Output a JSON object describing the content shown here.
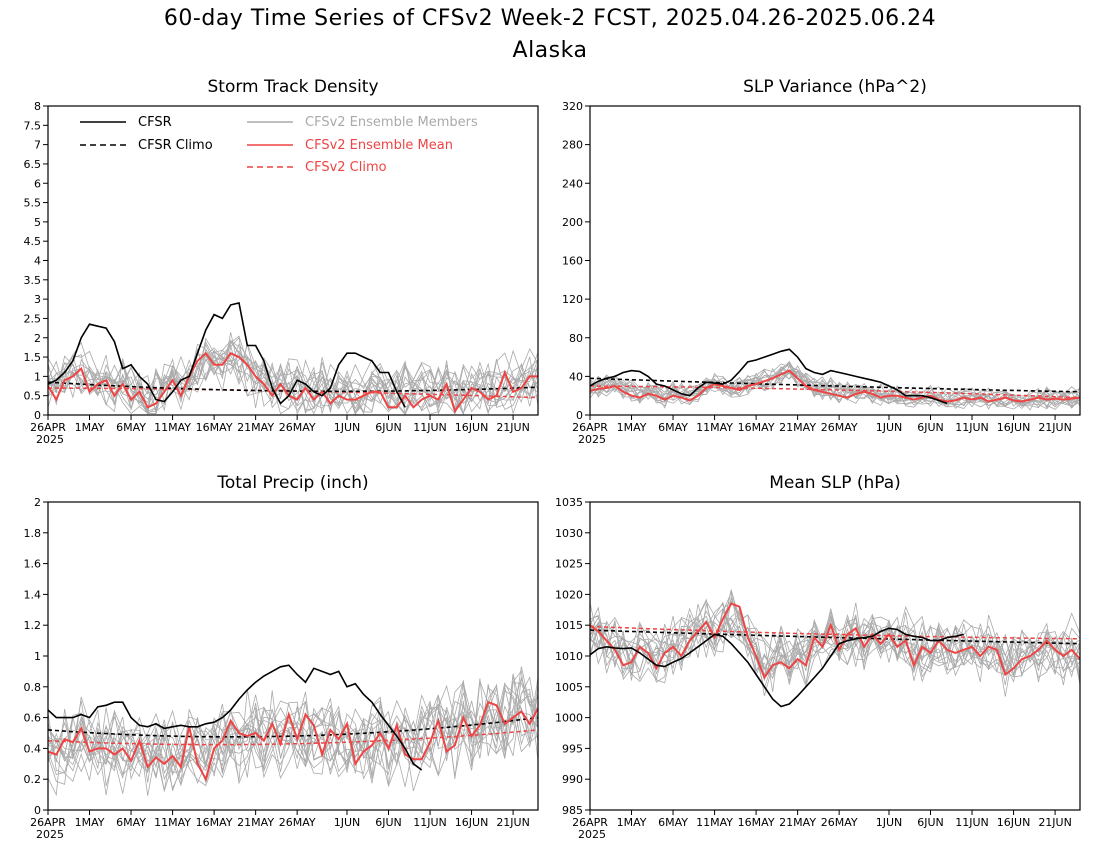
{
  "title": "60-day Time Series of CFSv2 Week-2 FCST, 2025.04.26-2025.06.24",
  "subtitle": "Alaska",
  "x_tick_labels": [
    "26APR",
    "1MAY",
    "6MAY",
    "11MAY",
    "16MAY",
    "21MAY",
    "26MAY",
    "1JUN",
    "6JUN",
    "11JUN",
    "16JUN",
    "21JUN"
  ],
  "x_year_label": "2025",
  "legend": {
    "cfsr": "CFSR",
    "cfsr_climo": "CFSR Climo",
    "members": "CFSv2 Ensemble Members",
    "ens_mean": "CFSv2 Ensemble Mean",
    "cfsv2_climo": "CFSv2 Climo"
  },
  "colors": {
    "cfsr": "#000000",
    "members": "#aaaaaa",
    "ens_mean": "#ee4444",
    "cfsv2_climo": "#ee4444"
  },
  "chart_data": [
    {
      "type": "line",
      "title": "Storm Track Density",
      "xlabel": "",
      "ylabel": "",
      "xlim": [
        0,
        59
      ],
      "ylim": [
        0,
        8
      ],
      "yticks": [
        0,
        0.5,
        1,
        1.5,
        2,
        2.5,
        3,
        3.5,
        4,
        4.5,
        5,
        5.5,
        6,
        6.5,
        7,
        7.5,
        8
      ],
      "ytick_labels": [
        "0",
        "0.5",
        "1",
        "1.5",
        "2",
        "2.5",
        "3",
        "3.5",
        "4",
        "4.5",
        "5",
        "5.5",
        "6",
        "6.5",
        "7",
        "7.5",
        "8"
      ],
      "cfsr": [
        0.8,
        0.9,
        1.1,
        1.4,
        2.0,
        2.35,
        2.3,
        2.25,
        1.9,
        1.2,
        1.3,
        1.0,
        0.8,
        0.4,
        0.35,
        0.6,
        0.9,
        1.0,
        1.6,
        2.2,
        2.6,
        2.5,
        2.85,
        2.9,
        1.8,
        1.8,
        1.4,
        0.7,
        0.3,
        0.5,
        0.9,
        0.8,
        0.6,
        0.5,
        0.7,
        1.3,
        1.6,
        1.6,
        1.5,
        1.4,
        1.1,
        1.1,
        0.6,
        0.2,
        null,
        null,
        null,
        null,
        null,
        null,
        null,
        null,
        null,
        null,
        null,
        null,
        null,
        null,
        null,
        null
      ],
      "cfsr_climo_start": 0.85,
      "cfsr_climo_mid": 0.62,
      "cfsr_climo_end": 0.72,
      "ens_mean": [
        0.75,
        0.4,
        0.9,
        1.0,
        1.2,
        0.6,
        0.8,
        0.9,
        0.5,
        0.8,
        0.4,
        0.6,
        0.2,
        0.3,
        0.6,
        0.9,
        0.5,
        1.0,
        1.4,
        1.6,
        1.3,
        1.3,
        1.6,
        1.5,
        1.3,
        1.0,
        0.8,
        0.5,
        0.8,
        0.5,
        0.4,
        0.7,
        0.4,
        0.6,
        0.3,
        0.5,
        0.4,
        0.4,
        0.5,
        0.6,
        0.6,
        0.2,
        0.2,
        0.5,
        0.2,
        0.4,
        0.5,
        0.4,
        0.8,
        0.1,
        0.4,
        0.7,
        0.6,
        0.4,
        0.5,
        1.1,
        0.6,
        0.7,
        1.0,
        1.0
      ],
      "cfsv2_climo_start": 0.7,
      "cfsv2_climo_mid": 0.62,
      "cfsv2_climo_end": 0.45,
      "members_center": [
        0.8,
        0.7,
        0.9,
        1.0,
        1.1,
        0.9,
        0.8,
        0.9,
        0.7,
        0.8,
        0.6,
        0.6,
        0.4,
        0.5,
        0.7,
        0.9,
        0.8,
        1.0,
        1.3,
        1.5,
        1.4,
        1.3,
        1.5,
        1.4,
        1.2,
        1.0,
        0.9,
        0.7,
        0.8,
        0.7,
        0.6,
        0.7,
        0.6,
        0.7,
        0.6,
        0.6,
        0.6,
        0.6,
        0.6,
        0.7,
        0.6,
        0.5,
        0.5,
        0.6,
        0.6,
        0.7,
        0.7,
        0.6,
        0.8,
        0.6,
        0.6,
        0.8,
        0.7,
        0.7,
        0.7,
        0.9,
        0.8,
        0.8,
        0.9,
        0.9
      ],
      "members_spread": 0.9,
      "members_count": 16
    },
    {
      "type": "line",
      "title": "SLP Variance (hPa^2)",
      "xlabel": "",
      "ylabel": "",
      "xlim": [
        0,
        59
      ],
      "ylim": [
        0,
        320
      ],
      "yticks": [
        0,
        40,
        80,
        120,
        160,
        200,
        240,
        280,
        320
      ],
      "ytick_labels": [
        "0",
        "40",
        "80",
        "120",
        "160",
        "200",
        "240",
        "280",
        "320"
      ],
      "cfsr": [
        30,
        35,
        38,
        40,
        44,
        46,
        45,
        40,
        32,
        30,
        26,
        22,
        20,
        28,
        34,
        33,
        32,
        36,
        45,
        55,
        57,
        60,
        63,
        66,
        68,
        60,
        48,
        44,
        42,
        46,
        44,
        42,
        40,
        38,
        36,
        34,
        30,
        26,
        20,
        20,
        20,
        18,
        15,
        12,
        null,
        null,
        null,
        null,
        null,
        null,
        null,
        null,
        null,
        null,
        null,
        null,
        null,
        null,
        null,
        null
      ],
      "cfsr_climo_start": 38,
      "cfsr_climo_mid": 30,
      "cfsr_climo_end": 24,
      "ens_mean": [
        25,
        27,
        28,
        30,
        24,
        20,
        18,
        22,
        20,
        16,
        20,
        18,
        15,
        20,
        28,
        32,
        30,
        28,
        26,
        30,
        32,
        35,
        38,
        42,
        46,
        38,
        30,
        26,
        24,
        22,
        20,
        18,
        22,
        24,
        22,
        18,
        20,
        20,
        18,
        16,
        18,
        20,
        16,
        14,
        15,
        18,
        16,
        18,
        14,
        16,
        18,
        15,
        14,
        16,
        18,
        16,
        17,
        16,
        17,
        18
      ],
      "cfsv2_climo_start": 30,
      "cfsv2_climo_mid": 26,
      "cfsv2_climo_end": 18,
      "members_center": [
        28,
        30,
        30,
        32,
        28,
        25,
        22,
        24,
        22,
        20,
        22,
        22,
        20,
        24,
        30,
        32,
        30,
        30,
        30,
        32,
        34,
        36,
        40,
        44,
        46,
        40,
        34,
        30,
        28,
        26,
        24,
        22,
        24,
        24,
        22,
        20,
        20,
        20,
        19,
        18,
        18,
        19,
        17,
        16,
        16,
        18,
        17,
        18,
        16,
        17,
        18,
        16,
        16,
        17,
        18,
        17,
        17,
        17,
        17,
        18
      ],
      "members_spread": 14,
      "members_count": 16
    },
    {
      "type": "line",
      "title": "Total Precip (inch)",
      "xlabel": "",
      "ylabel": "",
      "xlim": [
        0,
        59
      ],
      "ylim": [
        0,
        2
      ],
      "yticks": [
        0,
        0.2,
        0.4,
        0.6,
        0.8,
        1,
        1.2,
        1.4,
        1.6,
        1.8,
        2
      ],
      "ytick_labels": [
        "0",
        "0.2",
        "0.4",
        "0.6",
        "0.8",
        "1",
        "1.2",
        "1.4",
        "1.6",
        "1.8",
        "2"
      ],
      "cfsr": [
        0.65,
        0.6,
        0.6,
        0.6,
        0.62,
        0.6,
        0.67,
        0.68,
        0.7,
        0.7,
        0.6,
        0.55,
        0.54,
        0.56,
        0.53,
        0.54,
        0.55,
        0.54,
        0.54,
        0.56,
        0.57,
        0.6,
        0.65,
        0.72,
        0.78,
        0.83,
        0.87,
        0.9,
        0.93,
        0.94,
        0.88,
        0.83,
        0.92,
        0.9,
        0.88,
        0.9,
        0.8,
        0.82,
        0.75,
        0.7,
        0.62,
        0.55,
        0.48,
        0.4,
        0.3,
        0.26,
        null,
        null,
        null,
        null,
        null,
        null,
        null,
        null,
        null,
        null,
        null,
        null,
        null,
        null
      ],
      "cfsr_climo_start": 0.52,
      "cfsr_climo_mid": 0.48,
      "cfsr_climo_end": 0.6,
      "ens_mean": [
        0.38,
        0.36,
        0.46,
        0.44,
        0.53,
        0.38,
        0.4,
        0.4,
        0.36,
        0.4,
        0.32,
        0.45,
        0.28,
        0.34,
        0.3,
        0.35,
        0.28,
        0.54,
        0.3,
        0.2,
        0.4,
        0.45,
        0.58,
        0.5,
        0.48,
        0.5,
        0.45,
        0.56,
        0.43,
        0.62,
        0.46,
        0.62,
        0.55,
        0.36,
        0.52,
        0.46,
        0.56,
        0.3,
        0.38,
        0.42,
        0.5,
        0.4,
        0.55,
        0.36,
        0.33,
        0.33,
        0.44,
        0.58,
        0.38,
        0.42,
        0.6,
        0.48,
        0.55,
        0.7,
        0.68,
        0.56,
        0.6,
        0.64,
        0.56,
        0.66
      ],
      "cfsv2_climo_start": 0.45,
      "cfsv2_climo_mid": 0.43,
      "cfsv2_climo_end": 0.52,
      "members_center": [
        0.42,
        0.4,
        0.44,
        0.44,
        0.48,
        0.42,
        0.42,
        0.42,
        0.4,
        0.42,
        0.38,
        0.42,
        0.36,
        0.38,
        0.36,
        0.38,
        0.36,
        0.46,
        0.38,
        0.34,
        0.42,
        0.44,
        0.5,
        0.48,
        0.48,
        0.5,
        0.46,
        0.52,
        0.46,
        0.54,
        0.48,
        0.54,
        0.5,
        0.44,
        0.5,
        0.46,
        0.5,
        0.4,
        0.42,
        0.44,
        0.48,
        0.44,
        0.5,
        0.44,
        0.42,
        0.44,
        0.48,
        0.54,
        0.48,
        0.5,
        0.58,
        0.54,
        0.56,
        0.62,
        0.62,
        0.58,
        0.6,
        0.62,
        0.6,
        0.64
      ],
      "members_spread": 0.34,
      "members_count": 16
    },
    {
      "type": "line",
      "title": "Mean SLP (hPa)",
      "xlabel": "",
      "ylabel": "",
      "xlim": [
        0,
        59
      ],
      "ylim": [
        985,
        1035
      ],
      "yticks": [
        985,
        990,
        995,
        1000,
        1005,
        1010,
        1015,
        1020,
        1025,
        1030,
        1035
      ],
      "ytick_labels": [
        "985",
        "990",
        "995",
        "1000",
        "1005",
        "1010",
        "1015",
        "1020",
        "1025",
        "1030",
        "1035"
      ],
      "cfsr": [
        1010.2,
        1011.2,
        1011.5,
        1011.3,
        1011.2,
        1011.3,
        1010.5,
        1009.5,
        1008.5,
        1008.3,
        1009.0,
        1009.6,
        1010.5,
        1011.5,
        1012.5,
        1013.5,
        1013.2,
        1012.0,
        1010.5,
        1009.0,
        1007.0,
        1005.0,
        1003.0,
        1001.8,
        1002.2,
        1003.5,
        1005.0,
        1006.5,
        1008.0,
        1010.0,
        1012.0,
        1012.5,
        1012.8,
        1013.0,
        1013.2,
        1014.0,
        1014.5,
        1014.3,
        1013.5,
        1013.2,
        1013.0,
        1012.5,
        1012.5,
        1013.0,
        1013.2,
        1013.5,
        null,
        null,
        null,
        null,
        null,
        null,
        null,
        null,
        null,
        null,
        null,
        null,
        null,
        null
      ],
      "cfsr_climo_start": 1014.2,
      "cfsr_climo_mid": 1013.0,
      "cfsr_climo_end": 1012.0,
      "ens_mean": [
        1015.0,
        1014.0,
        1012.5,
        1011.0,
        1008.5,
        1009.0,
        1011.5,
        1010.5,
        1008.0,
        1010.5,
        1011.5,
        1010.0,
        1012.5,
        1014.0,
        1015.5,
        1013.0,
        1016.0,
        1018.5,
        1018.0,
        1013.0,
        1010.0,
        1006.5,
        1008.5,
        1009.0,
        1008.0,
        1009.5,
        1008.5,
        1013.0,
        1011.5,
        1015.0,
        1011.0,
        1013.5,
        1014.5,
        1011.5,
        1013.5,
        1012.0,
        1013.5,
        1011.5,
        1012.5,
        1008.5,
        1011.5,
        1010.5,
        1012.5,
        1011.0,
        1010.5,
        1011.0,
        1011.5,
        1010.0,
        1011.5,
        1011.0,
        1007.0,
        1008.0,
        1009.5,
        1010.0,
        1011.0,
        1012.5,
        1011.0,
        1010.0,
        1011.0,
        1009.5
      ],
      "cfsv2_climo_start": 1014.8,
      "cfsv2_climo_mid": 1013.5,
      "cfsv2_climo_end": 1012.8,
      "members_center": [
        1014.5,
        1013.8,
        1012.5,
        1011.5,
        1010.0,
        1010.2,
        1011.5,
        1011.0,
        1010.0,
        1011.0,
        1012.0,
        1011.5,
        1012.8,
        1014.0,
        1015.0,
        1014.0,
        1015.5,
        1016.5,
        1016.0,
        1013.0,
        1010.5,
        1008.5,
        1009.5,
        1010.0,
        1009.5,
        1010.5,
        1010.0,
        1012.5,
        1012.0,
        1014.0,
        1012.0,
        1013.0,
        1013.8,
        1012.0,
        1013.0,
        1012.2,
        1013.0,
        1012.0,
        1012.3,
        1010.5,
        1011.5,
        1011.0,
        1012.0,
        1011.3,
        1011.0,
        1011.2,
        1011.5,
        1010.8,
        1011.3,
        1011.0,
        1009.0,
        1009.5,
        1010.2,
        1010.5,
        1011.0,
        1011.8,
        1011.0,
        1010.5,
        1011.0,
        1010.2
      ],
      "members_spread": 6,
      "members_count": 16
    }
  ]
}
